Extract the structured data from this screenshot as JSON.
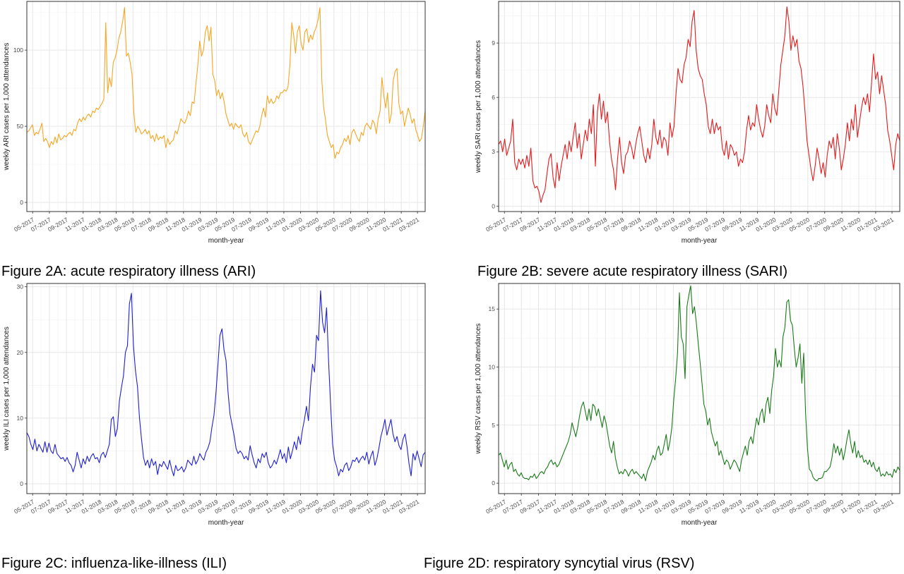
{
  "captions": {
    "a": "Figure 2A: acute respiratory illness (ARI)",
    "b": "Figure 2B: severe acute respiratory illness (SARI)",
    "c": "Figure 2C:  influenza-like-illness (ILI)",
    "d": "Figure 2D: respiratory syncytial virus (RSV)"
  },
  "chart_data": [
    {
      "id": "ari",
      "type": "line",
      "ylabel": "weekly ARI cases per 1,000 attendances",
      "xlabel": "month-year",
      "color": "#f5a623",
      "ylim": [
        -6,
        132
      ],
      "yticks": [
        0,
        50,
        100
      ],
      "grid": true,
      "xticks": [
        "05-2017",
        "07-2017",
        "09-2017",
        "11-2017",
        "01-2018",
        "03-2018",
        "05-2018",
        "07-2018",
        "09-2018",
        "11-2018",
        "01-2019",
        "03-2019",
        "05-2019",
        "07-2019",
        "09-2019",
        "11-2019",
        "01-2020",
        "03-2020",
        "05-2020",
        "07-2020",
        "09-2020",
        "11-2020",
        "01-2021",
        "03-2021"
      ],
      "x_range": [
        "2017-04-10",
        "2021-03-29"
      ],
      "series": [
        {
          "values": [
            46,
            47,
            49,
            51,
            44,
            46,
            45,
            48,
            52,
            40,
            42,
            40,
            36,
            40,
            38,
            43,
            39,
            45,
            41,
            42,
            44,
            43,
            45,
            46,
            44,
            48,
            47,
            52,
            55,
            53,
            56,
            54,
            57,
            58,
            56,
            60,
            59,
            62,
            61,
            63,
            65,
            68,
            118,
            72,
            82,
            76,
            92,
            95,
            100,
            108,
            112,
            119,
            128,
            96,
            98,
            92,
            84,
            58,
            46,
            50,
            48,
            45,
            46,
            48,
            45,
            47,
            42,
            44,
            40,
            45,
            41,
            43,
            42,
            44,
            36,
            42,
            38,
            40,
            41,
            47,
            45,
            50,
            55,
            53,
            52,
            55,
            60,
            57,
            66,
            65,
            78,
            90,
            106,
            96,
            100,
            112,
            116,
            106,
            115,
            84,
            80,
            70,
            74,
            68,
            72,
            66,
            58,
            54,
            50,
            52,
            48,
            52,
            50,
            49,
            51,
            45,
            43,
            46,
            40,
            38,
            41,
            44,
            47,
            46,
            50,
            57,
            62,
            56,
            70,
            65,
            68,
            65,
            66,
            70,
            68,
            72,
            72,
            74,
            73,
            76,
            90,
            118,
            110,
            98,
            112,
            116,
            104,
            100,
            112,
            114,
            105,
            110,
            107,
            112,
            115,
            120,
            128,
            80,
            62,
            54,
            44,
            40,
            36,
            38,
            29,
            33,
            32,
            36,
            38,
            42,
            40,
            44,
            38,
            46,
            48,
            45,
            42,
            40,
            46,
            44,
            50,
            52,
            50,
            48,
            54,
            52,
            45,
            55,
            60,
            82,
            70,
            62,
            72,
            52,
            58,
            80,
            86,
            88,
            65,
            58,
            60,
            50,
            56,
            62,
            58,
            52,
            55,
            48,
            44,
            40,
            42,
            50,
            60
          ]
        }
      ]
    },
    {
      "id": "sari",
      "type": "line",
      "ylabel": "weekly SARI cases per 1,000 attendances",
      "xlabel": "month-year",
      "color": "#e41a1c",
      "ylim": [
        -0.3,
        11.3
      ],
      "yticks": [
        0,
        3,
        6,
        9
      ],
      "grid": true,
      "xticks": [
        "05-2017",
        "07-2017",
        "09-2017",
        "11-2017",
        "01-2018",
        "03-2018",
        "05-2018",
        "07-2018",
        "09-2018",
        "11-2018",
        "01-2019",
        "03-2019",
        "05-2019",
        "07-2019",
        "09-2019",
        "11-2019",
        "01-2020",
        "03-2020",
        "05-2020",
        "07-2020",
        "09-2020",
        "11-2020",
        "01-2021",
        "03-2021"
      ],
      "x_range": [
        "2017-04-10",
        "2021-03-29"
      ],
      "series": [
        {
          "values": [
            3.4,
            3.6,
            3.0,
            3.7,
            2.8,
            3.2,
            3.6,
            4.8,
            2.4,
            2.0,
            2.6,
            2.3,
            2.6,
            2.1,
            2.8,
            2.2,
            3.2,
            1.4,
            1.0,
            1.1,
            0.8,
            0.2,
            0.6,
            0.9,
            1.8,
            2.6,
            2.9,
            1.6,
            1.0,
            2.4,
            1.4,
            2.2,
            2.8,
            3.4,
            2.6,
            3.6,
            3.0,
            3.8,
            4.6,
            3.2,
            4.0,
            2.6,
            3.4,
            4.2,
            3.6,
            4.8,
            4.0,
            5.6,
            2.2,
            5.2,
            6.2,
            4.8,
            5.8,
            4.6,
            5.2,
            3.6,
            2.6,
            2.0,
            0.9,
            2.6,
            3.8,
            2.4,
            1.8,
            2.8,
            3.0,
            3.6,
            3.2,
            2.6,
            3.4,
            4.0,
            4.4,
            3.6,
            2.8,
            2.4,
            3.2,
            2.6,
            3.4,
            4.8,
            3.8,
            3.4,
            4.2,
            3.2,
            3.8,
            3.6,
            2.8,
            4.6,
            3.8,
            4.4,
            6.2,
            7.6,
            7.0,
            6.8,
            7.8,
            8.2,
            9.2,
            8.8,
            10.2,
            10.8,
            8.6,
            7.6,
            7.2,
            7.0,
            6.2,
            5.6,
            4.4,
            4.0,
            4.8,
            4.0,
            4.6,
            4.2,
            4.4,
            3.2,
            2.8,
            3.6,
            2.6,
            3.4,
            3.2,
            2.8,
            3.0,
            2.2,
            2.6,
            2.4,
            3.0,
            4.2,
            5.0,
            4.2,
            4.6,
            4.4,
            5.6,
            4.8,
            4.2,
            3.8,
            4.4,
            5.6,
            5.0,
            4.6,
            6.2,
            5.4,
            5.0,
            6.4,
            7.8,
            8.6,
            9.4,
            11.0,
            10.2,
            8.6,
            9.4,
            8.8,
            9.2,
            8.0,
            7.6,
            6.6,
            5.2,
            3.6,
            2.8,
            2.0,
            1.4,
            2.2,
            3.2,
            2.6,
            1.8,
            2.4,
            1.6,
            2.8,
            3.6,
            3.2,
            3.8,
            2.6,
            4.0,
            3.2,
            2.0,
            2.6,
            3.4,
            4.6,
            3.6,
            4.8,
            4.2,
            5.6,
            3.8,
            4.6,
            5.4,
            6.0,
            5.6,
            6.2,
            5.2,
            6.8,
            8.4,
            7.0,
            7.4,
            6.2,
            7.2,
            6.4,
            5.6,
            4.2,
            3.6,
            2.8,
            2.0,
            3.4,
            4.0,
            3.6
          ]
        }
      ]
    },
    {
      "id": "ili",
      "type": "line",
      "ylabel": "weekly ILI cases per 1,000 attendances",
      "xlabel": "month-year",
      "color": "#1f1fd6",
      "ylim": [
        -1.5,
        30.5
      ],
      "yticks": [
        0,
        10,
        20,
        30
      ],
      "grid": true,
      "xticks": [
        "05-2017",
        "07-2017",
        "09-2017",
        "11-2017",
        "01-2018",
        "03-2018",
        "05-2018",
        "07-2018",
        "09-2018",
        "11-2018",
        "01-2019",
        "03-2019",
        "05-2019",
        "07-2019",
        "09-2019",
        "11-2019",
        "01-2020",
        "03-2020",
        "05-2020",
        "07-2020",
        "09-2020",
        "11-2020",
        "01-2021",
        "03-2021"
      ],
      "x_range": [
        "2017-04-10",
        "2021-03-29"
      ],
      "series": [
        {
          "values": [
            7.8,
            7.2,
            6.0,
            5.2,
            6.8,
            5.0,
            6.0,
            5.4,
            4.8,
            6.4,
            4.8,
            6.2,
            5.0,
            4.6,
            6.0,
            4.6,
            4.2,
            3.8,
            4.0,
            3.4,
            4.0,
            3.2,
            2.8,
            1.8,
            2.8,
            4.8,
            3.6,
            2.4,
            3.8,
            3.0,
            4.2,
            3.4,
            4.2,
            4.6,
            3.8,
            4.0,
            3.2,
            4.4,
            4.8,
            4.0,
            5.0,
            6.0,
            9.8,
            10.2,
            7.2,
            8.4,
            12.6,
            14.6,
            16.4,
            20.0,
            21.0,
            27.4,
            29.0,
            21.0,
            17.2,
            14.8,
            10.0,
            6.8,
            4.0,
            2.8,
            3.6,
            2.4,
            3.8,
            2.8,
            3.4,
            1.4,
            3.0,
            2.6,
            3.4,
            2.8,
            2.2,
            3.6,
            2.2,
            1.2,
            2.8,
            2.0,
            2.2,
            2.6,
            1.8,
            2.4,
            3.6,
            3.2,
            2.8,
            4.2,
            3.0,
            3.6,
            4.6,
            4.0,
            3.6,
            4.8,
            5.4,
            6.4,
            8.6,
            10.4,
            13.8,
            18.2,
            22.6,
            23.6,
            20.4,
            18.8,
            14.0,
            10.6,
            9.0,
            7.4,
            5.4,
            4.6,
            5.0,
            4.6,
            3.8,
            4.2,
            3.6,
            5.8,
            4.4,
            3.2,
            2.4,
            3.8,
            3.2,
            4.6,
            4.0,
            4.8,
            3.2,
            2.4,
            2.8,
            3.6,
            3.0,
            4.0,
            5.2,
            3.8,
            4.6,
            3.2,
            5.6,
            3.8,
            5.0,
            6.4,
            5.2,
            7.2,
            6.0,
            8.2,
            9.8,
            11.8,
            9.6,
            14.8,
            18.2,
            17.0,
            22.6,
            21.8,
            29.4,
            24.6,
            23.0,
            26.8,
            18.6,
            12.0,
            6.0,
            3.6,
            2.6,
            1.2,
            2.2,
            1.8,
            2.8,
            3.2,
            2.0,
            2.6,
            3.6,
            3.4,
            4.0,
            3.2,
            3.8,
            4.2,
            3.6,
            4.8,
            3.0,
            4.2,
            5.0,
            2.8,
            3.8,
            5.4,
            7.2,
            8.4,
            9.8,
            7.4,
            8.6,
            9.8,
            7.6,
            6.4,
            7.2,
            5.8,
            5.2,
            6.8,
            7.6,
            5.6,
            3.0,
            1.2,
            4.6,
            3.6,
            5.0,
            3.8,
            2.6,
            4.4,
            4.8
          ]
        }
      ]
    },
    {
      "id": "rsv",
      "type": "line",
      "ylabel": "weekly RSV cases per 1,000 attendances",
      "xlabel": "month-year",
      "color": "#1a7a1a",
      "ylim": [
        -0.9,
        17.2
      ],
      "yticks": [
        0,
        5,
        10,
        15
      ],
      "grid": true,
      "xticks": [
        "05-2017",
        "07-2017",
        "09-2017",
        "11-2017",
        "01-2018",
        "03-2018",
        "05-2018",
        "07-2018",
        "09-2018",
        "11-2018",
        "01-2019",
        "03-2019",
        "05-2019",
        "07-2019",
        "09-2019",
        "11-2019",
        "01-2020",
        "03-2020",
        "05-2020",
        "07-2020",
        "09-2020",
        "11-2020",
        "01-2021",
        "03-2021"
      ],
      "x_range": [
        "2017-04-10",
        "2021-03-29"
      ],
      "series": [
        {
          "values": [
            2.4,
            2.6,
            2.0,
            1.4,
            2.0,
            1.2,
            1.6,
            1.8,
            1.0,
            1.2,
            0.8,
            0.6,
            0.9,
            0.5,
            0.4,
            0.4,
            0.3,
            0.6,
            0.5,
            0.8,
            0.4,
            0.6,
            0.9,
            1.0,
            0.8,
            1.2,
            1.4,
            1.8,
            2.0,
            1.6,
            1.8,
            1.4,
            1.6,
            2.0,
            2.4,
            2.8,
            3.2,
            3.6,
            4.2,
            5.2,
            4.6,
            4.0,
            4.8,
            5.8,
            6.6,
            7.0,
            6.2,
            5.4,
            6.4,
            5.4,
            6.8,
            6.6,
            5.8,
            6.4,
            5.6,
            4.8,
            5.8,
            5.2,
            4.2,
            3.2,
            2.6,
            3.6,
            2.2,
            1.4,
            0.8,
            1.0,
            0.8,
            1.2,
            1.0,
            0.6,
            1.0,
            1.2,
            0.8,
            1.0,
            0.8,
            0.6,
            0.4,
            0.8,
            0.2,
            1.0,
            1.4,
            1.8,
            2.4,
            2.0,
            2.8,
            3.2,
            2.4,
            2.6,
            3.4,
            4.2,
            2.8,
            3.6,
            4.8,
            7.2,
            9.0,
            11.2,
            16.4,
            12.6,
            12.0,
            9.0,
            15.2,
            16.2,
            17.0,
            14.6,
            15.2,
            13.8,
            12.0,
            10.4,
            8.6,
            6.8,
            6.2,
            5.0,
            5.6,
            4.4,
            3.8,
            3.2,
            3.6,
            2.4,
            2.8,
            2.2,
            1.6,
            2.0,
            1.8,
            1.2,
            1.6,
            2.0,
            1.8,
            1.4,
            1.0,
            2.0,
            2.6,
            3.2,
            2.4,
            3.6,
            4.0,
            3.4,
            4.6,
            5.6,
            5.0,
            6.0,
            6.4,
            5.2,
            6.8,
            7.4,
            6.0,
            8.0,
            9.2,
            11.6,
            10.0,
            10.6,
            10.0,
            12.6,
            13.4,
            15.6,
            15.8,
            14.0,
            13.6,
            11.6,
            10.0,
            10.8,
            12.0,
            8.6,
            11.2,
            6.0,
            3.0,
            1.2,
            1.0,
            0.5,
            0.3,
            0.2,
            0.4,
            0.4,
            0.5,
            1.0,
            1.0,
            1.2,
            1.4,
            2.2,
            3.4,
            2.6,
            3.2,
            2.4,
            3.0,
            2.0,
            2.8,
            3.8,
            4.6,
            3.4,
            2.6,
            3.6,
            2.2,
            2.8,
            2.2,
            2.4,
            1.8,
            2.0,
            1.6,
            2.0,
            1.4,
            1.8,
            1.2,
            1.0,
            1.4,
            0.6,
            0.8,
            0.6,
            1.0,
            0.7,
            0.8,
            0.5,
            1.2,
            0.9,
            1.4,
            1.1
          ]
        }
      ]
    }
  ]
}
